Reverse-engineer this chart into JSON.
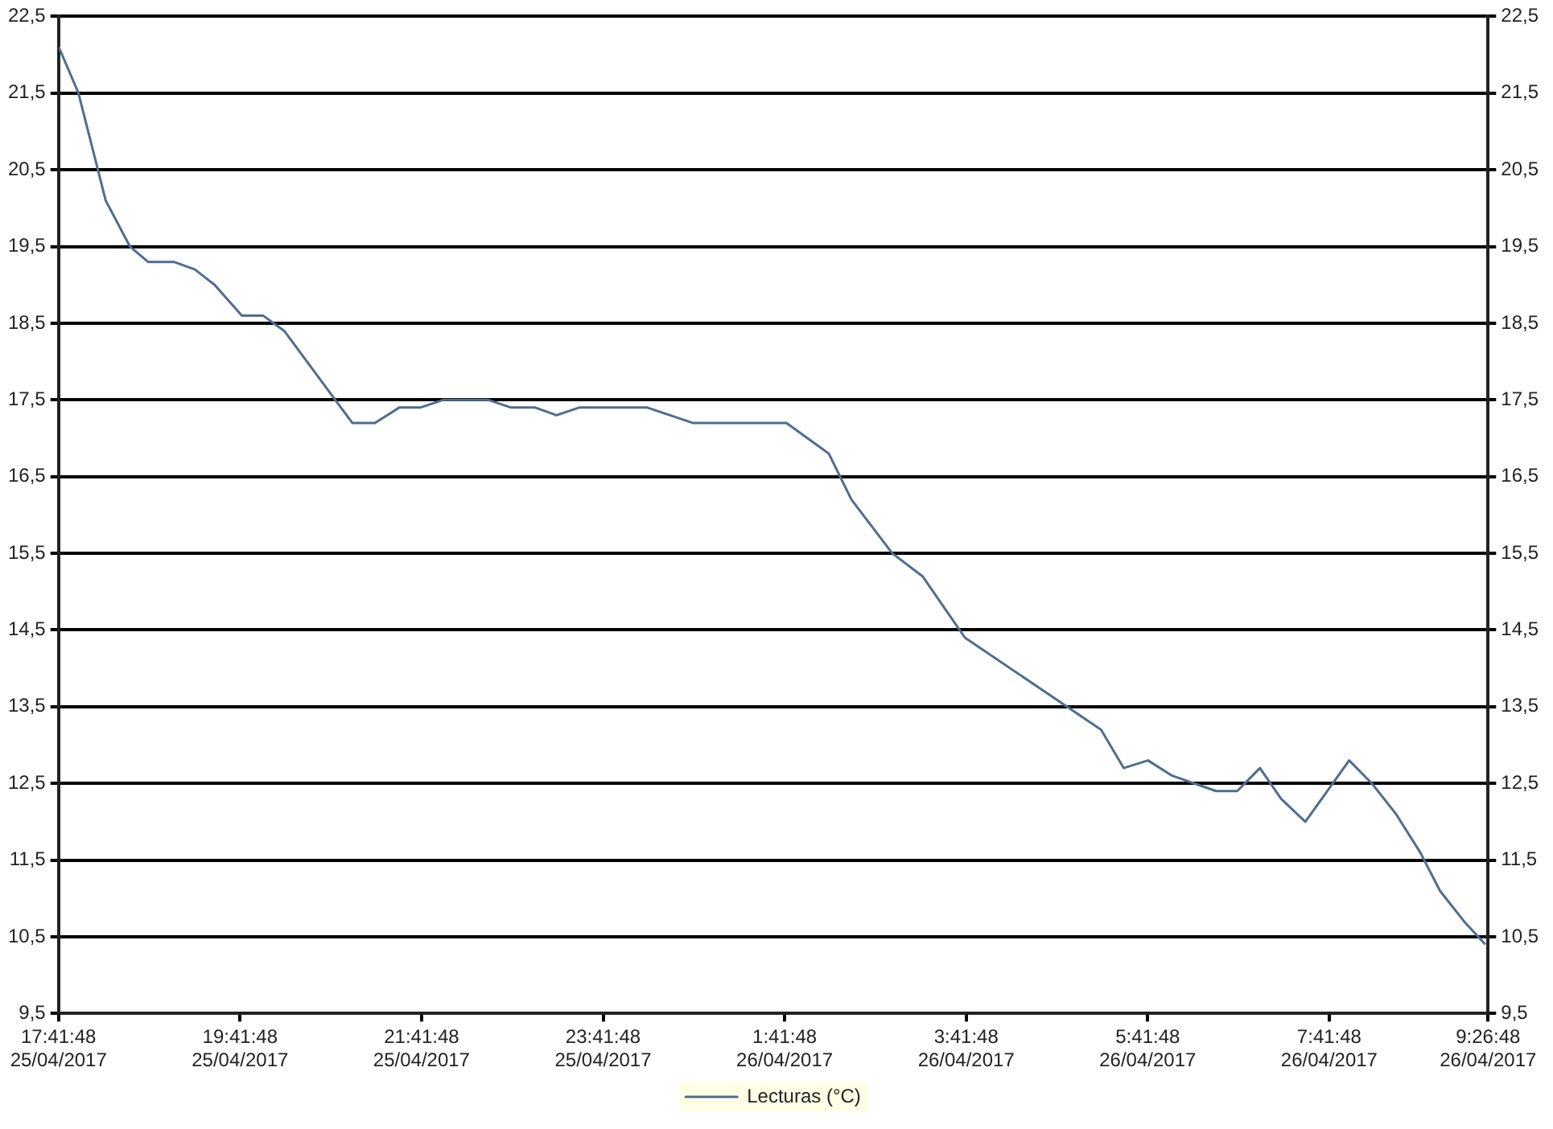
{
  "chart_data": {
    "type": "line",
    "x": [
      "2017-04-25T17:42",
      "2017-04-25T17:55",
      "2017-04-25T18:13",
      "2017-04-25T18:29",
      "2017-04-25T18:41",
      "2017-04-25T18:58",
      "2017-04-25T19:12",
      "2017-04-25T19:25",
      "2017-04-25T19:43",
      "2017-04-25T19:57",
      "2017-04-25T20:11",
      "2017-04-25T20:56",
      "2017-04-25T21:11",
      "2017-04-25T21:27",
      "2017-04-25T21:41",
      "2017-04-25T21:56",
      "2017-04-25T22:26",
      "2017-04-25T22:41",
      "2017-04-25T22:57",
      "2017-04-25T23:11",
      "2017-04-25T23:26",
      "2017-04-26T00:11",
      "2017-04-26T00:41",
      "2017-04-26T01:43",
      "2017-04-26T02:11",
      "2017-04-26T02:26",
      "2017-04-26T02:53",
      "2017-04-26T03:13",
      "2017-04-26T03:41",
      "2017-04-26T05:11",
      "2017-04-26T05:26",
      "2017-04-26T05:42",
      "2017-04-26T05:58",
      "2017-04-26T06:27",
      "2017-04-26T06:41",
      "2017-04-26T06:56",
      "2017-04-26T07:10",
      "2017-04-26T07:26",
      "2017-04-26T07:55",
      "2017-04-26T08:10",
      "2017-04-26T08:26",
      "2017-04-26T08:42",
      "2017-04-26T08:55",
      "2017-04-26T09:11",
      "2017-04-26T09:25"
    ],
    "series": [
      {
        "name": "Lecturas (°C)",
        "color": "#4f6d8f",
        "values": [
          22.1,
          21.5,
          20.1,
          19.5,
          19.3,
          19.3,
          19.2,
          19.0,
          18.6,
          18.6,
          18.4,
          17.2,
          17.2,
          17.4,
          17.4,
          17.5,
          17.5,
          17.4,
          17.4,
          17.3,
          17.4,
          17.4,
          17.2,
          17.2,
          16.8,
          16.2,
          15.5,
          15.2,
          14.4,
          13.2,
          12.7,
          12.8,
          12.6,
          12.4,
          12.4,
          12.7,
          12.3,
          12.0,
          12.8,
          12.5,
          12.1,
          11.6,
          11.1,
          10.7,
          10.4
        ]
      }
    ],
    "xlim": [
      "2017-04-25T17:41:48",
      "2017-04-26T09:26:48"
    ],
    "xticks": [
      {
        "value": "2017-04-25T17:41:48",
        "label": "17:41:48 25/04/2017"
      },
      {
        "value": "2017-04-25T19:41:48",
        "label": "19:41:48 25/04/2017"
      },
      {
        "value": "2017-04-25T21:41:48",
        "label": "21:41:48 25/04/2017"
      },
      {
        "value": "2017-04-25T23:41:48",
        "label": "23:41:48 25/04/2017"
      },
      {
        "value": "2017-04-26T01:41:48",
        "label": "1:41:48 26/04/2017"
      },
      {
        "value": "2017-04-26T03:41:48",
        "label": "3:41:48 26/04/2017"
      },
      {
        "value": "2017-04-26T05:41:48",
        "label": "5:41:48 26/04/2017"
      },
      {
        "value": "2017-04-26T07:41:48",
        "label": "7:41:48 26/04/2017"
      },
      {
        "value": "2017-04-26T09:26:48",
        "label": "9:26:48 26/04/2017"
      }
    ],
    "ylim": [
      9.5,
      22.5
    ],
    "yticks": [
      {
        "value": 9.5,
        "label": "9,5"
      },
      {
        "value": 10.5,
        "label": "10,5"
      },
      {
        "value": 11.5,
        "label": "11,5"
      },
      {
        "value": 12.5,
        "label": "12,5"
      },
      {
        "value": 13.5,
        "label": "13,5"
      },
      {
        "value": 14.5,
        "label": "14,5"
      },
      {
        "value": 15.5,
        "label": "15,5"
      },
      {
        "value": 16.5,
        "label": "16,5"
      },
      {
        "value": 17.5,
        "label": "17,5"
      },
      {
        "value": 18.5,
        "label": "18,5"
      },
      {
        "value": 19.5,
        "label": "19,5"
      },
      {
        "value": 20.5,
        "label": "20,5"
      },
      {
        "value": 21.5,
        "label": "21,5"
      },
      {
        "value": 22.5,
        "label": "22,5"
      }
    ],
    "y2lim": [
      9.5,
      22.5
    ],
    "y2ticks": [
      {
        "value": 9.5,
        "label": "9,5"
      },
      {
        "value": 10.5,
        "label": "10,5"
      },
      {
        "value": 11.5,
        "label": "11,5"
      },
      {
        "value": 12.5,
        "label": "12,5"
      },
      {
        "value": 13.5,
        "label": "13,5"
      },
      {
        "value": 14.5,
        "label": "14,5"
      },
      {
        "value": 15.5,
        "label": "15,5"
      },
      {
        "value": 16.5,
        "label": "16,5"
      },
      {
        "value": 17.5,
        "label": "17,5"
      },
      {
        "value": 18.5,
        "label": "18,5"
      },
      {
        "value": 19.5,
        "label": "19,5"
      },
      {
        "value": 20.5,
        "label": "20,5"
      },
      {
        "value": 21.5,
        "label": "21,5"
      },
      {
        "value": 22.5,
        "label": "22,5"
      }
    ],
    "grid": "y",
    "legend": "bottom",
    "marker": "none",
    "line_style": "solid"
  }
}
